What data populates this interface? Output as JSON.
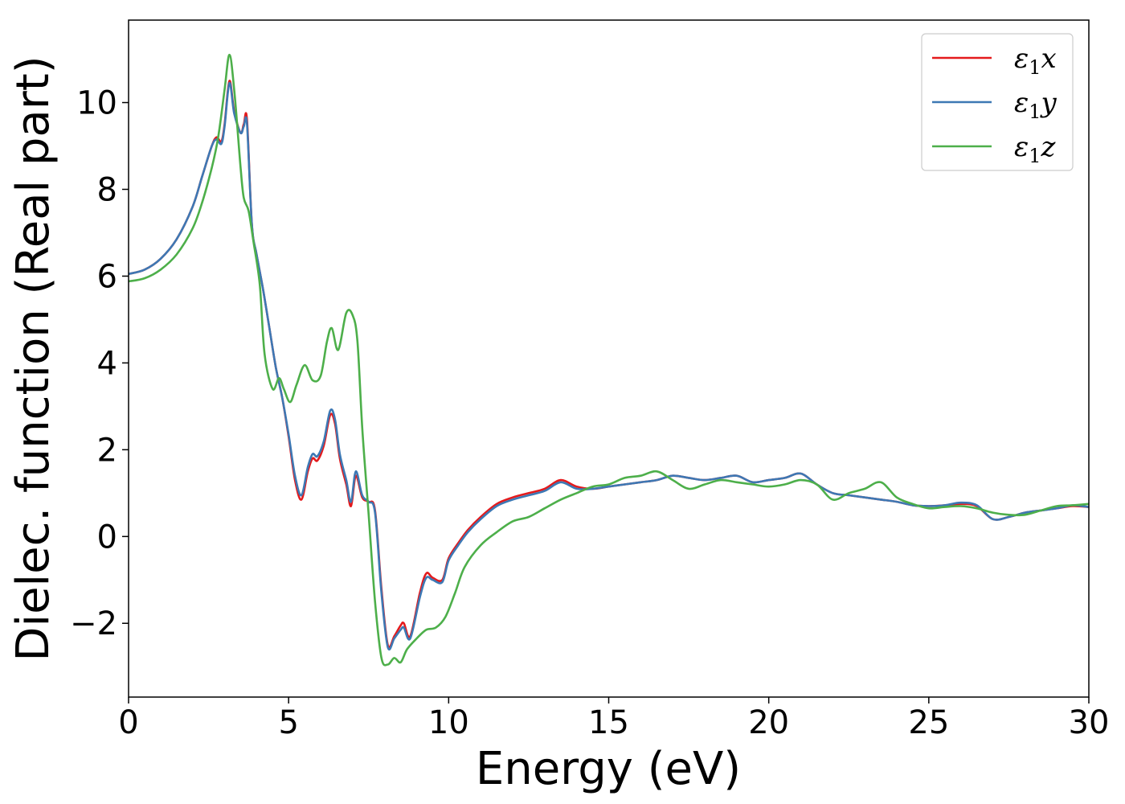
{
  "chart_data": {
    "type": "line",
    "xlabel": "Energy (eV)",
    "ylabel": "Dielec. function (Real part)",
    "xlim": [
      0,
      30
    ],
    "ylim": [
      -3.7,
      11.9
    ],
    "xticks": [
      0,
      5,
      10,
      15,
      20,
      25,
      30
    ],
    "yticks": [
      -2,
      0,
      2,
      4,
      6,
      8,
      10
    ],
    "ytick_labels": [
      "−2",
      "0",
      "2",
      "4",
      "6",
      "8",
      "10"
    ],
    "grid": false,
    "legend_position": "top-right",
    "series": [
      {
        "name": "ε",
        "name_sub": "1",
        "name_suffix": "x",
        "color": "#e41a1c",
        "x": [
          0,
          0.5,
          1.0,
          1.5,
          2.0,
          2.3,
          2.6,
          2.75,
          2.9,
          3.0,
          3.15,
          3.3,
          3.5,
          3.6,
          3.7,
          3.85,
          4.0,
          4.2,
          4.4,
          4.6,
          4.8,
          5.0,
          5.2,
          5.4,
          5.6,
          5.75,
          5.9,
          6.1,
          6.3,
          6.45,
          6.6,
          6.8,
          6.95,
          7.1,
          7.3,
          7.5,
          7.7,
          7.9,
          8.1,
          8.3,
          8.5,
          8.6,
          8.8,
          9.1,
          9.3,
          9.5,
          9.8,
          10.0,
          10.3,
          10.6,
          11.0,
          11.5,
          12.0,
          12.5,
          13.0,
          13.5,
          14.0,
          14.5,
          15.0,
          15.5,
          16.0,
          16.5,
          17.0,
          17.5,
          18.0,
          18.5,
          19.0,
          19.5,
          20.0,
          20.5,
          21.0,
          21.5,
          22.0,
          22.5,
          23.0,
          23.5,
          24.0,
          24.5,
          25.0,
          25.5,
          26.0,
          26.5,
          27.0,
          27.5,
          28.0,
          28.5,
          29.0,
          29.5,
          30.0
        ],
        "y": [
          6.05,
          6.15,
          6.4,
          6.85,
          7.6,
          8.3,
          9.0,
          9.2,
          9.1,
          9.5,
          10.5,
          9.8,
          9.3,
          9.5,
          9.6,
          7.2,
          6.5,
          5.7,
          4.8,
          3.9,
          3.2,
          2.3,
          1.3,
          0.85,
          1.5,
          1.8,
          1.75,
          2.1,
          2.8,
          2.6,
          1.8,
          1.2,
          0.7,
          1.4,
          0.9,
          0.8,
          0.6,
          -1.2,
          -2.5,
          -2.3,
          -2.05,
          -2.0,
          -2.3,
          -1.3,
          -0.85,
          -0.95,
          -1.0,
          -0.5,
          -0.15,
          0.15,
          0.45,
          0.75,
          0.9,
          1.0,
          1.1,
          1.3,
          1.15,
          1.1,
          1.15,
          1.2,
          1.25,
          1.3,
          1.4,
          1.35,
          1.3,
          1.35,
          1.4,
          1.25,
          1.3,
          1.35,
          1.45,
          1.2,
          1.0,
          0.95,
          0.9,
          0.85,
          0.8,
          0.72,
          0.7,
          0.72,
          0.75,
          0.7,
          0.4,
          0.45,
          0.55,
          0.6,
          0.65,
          0.7,
          0.68
        ]
      },
      {
        "name": "ε",
        "name_sub": "1",
        "name_suffix": "y",
        "color": "#3d78b4",
        "x": [
          0,
          0.5,
          1.0,
          1.5,
          2.0,
          2.3,
          2.6,
          2.75,
          2.9,
          3.0,
          3.15,
          3.3,
          3.5,
          3.6,
          3.7,
          3.85,
          4.0,
          4.2,
          4.4,
          4.6,
          4.8,
          5.0,
          5.2,
          5.4,
          5.6,
          5.75,
          5.9,
          6.1,
          6.3,
          6.45,
          6.6,
          6.8,
          6.95,
          7.1,
          7.3,
          7.5,
          7.7,
          7.9,
          8.1,
          8.3,
          8.5,
          8.6,
          8.8,
          9.1,
          9.3,
          9.5,
          9.8,
          10.0,
          10.3,
          10.6,
          11.0,
          11.5,
          12.0,
          12.5,
          13.0,
          13.5,
          14.0,
          14.5,
          15.0,
          15.5,
          16.0,
          16.5,
          17.0,
          17.5,
          18.0,
          18.5,
          19.0,
          19.5,
          20.0,
          20.5,
          21.0,
          21.5,
          22.0,
          22.5,
          23.0,
          23.5,
          24.0,
          24.5,
          25.0,
          25.5,
          26.0,
          26.5,
          27.0,
          27.5,
          28.0,
          28.5,
          29.0,
          29.5,
          30.0
        ],
        "y": [
          6.05,
          6.15,
          6.4,
          6.85,
          7.6,
          8.3,
          9.0,
          9.15,
          9.05,
          9.45,
          10.45,
          9.75,
          9.3,
          9.45,
          9.5,
          7.2,
          6.5,
          5.7,
          4.8,
          3.9,
          3.2,
          2.35,
          1.4,
          0.95,
          1.6,
          1.9,
          1.85,
          2.2,
          2.9,
          2.7,
          1.9,
          1.3,
          0.8,
          1.5,
          0.95,
          0.8,
          0.55,
          -1.3,
          -2.55,
          -2.35,
          -2.15,
          -2.1,
          -2.35,
          -1.4,
          -0.95,
          -1.0,
          -1.05,
          -0.55,
          -0.2,
          0.1,
          0.4,
          0.7,
          0.85,
          0.95,
          1.05,
          1.25,
          1.1,
          1.1,
          1.15,
          1.2,
          1.25,
          1.3,
          1.4,
          1.35,
          1.3,
          1.35,
          1.4,
          1.25,
          1.3,
          1.35,
          1.45,
          1.2,
          1.0,
          0.95,
          0.9,
          0.85,
          0.8,
          0.72,
          0.7,
          0.72,
          0.78,
          0.72,
          0.4,
          0.45,
          0.55,
          0.6,
          0.65,
          0.72,
          0.68
        ]
      },
      {
        "name": "ε",
        "name_sub": "1",
        "name_suffix": "z",
        "color": "#4daf4a",
        "x": [
          0,
          0.5,
          1.0,
          1.5,
          2.0,
          2.3,
          2.6,
          2.8,
          3.0,
          3.15,
          3.3,
          3.5,
          3.6,
          3.75,
          3.9,
          4.1,
          4.25,
          4.5,
          4.7,
          4.85,
          5.05,
          5.25,
          5.5,
          5.75,
          6.0,
          6.2,
          6.35,
          6.55,
          6.8,
          7.0,
          7.15,
          7.3,
          7.5,
          7.7,
          7.9,
          8.1,
          8.3,
          8.5,
          8.7,
          9.0,
          9.3,
          9.6,
          9.9,
          10.2,
          10.5,
          11.0,
          11.5,
          12.0,
          12.5,
          13.0,
          13.5,
          14.0,
          14.5,
          15.0,
          15.5,
          16.0,
          16.5,
          17.0,
          17.5,
          18.0,
          18.5,
          19.0,
          19.5,
          20.0,
          20.5,
          21.0,
          21.5,
          22.0,
          22.5,
          23.0,
          23.5,
          24.0,
          24.5,
          25.0,
          25.5,
          26.0,
          26.5,
          27.0,
          27.5,
          28.0,
          28.5,
          29.0,
          29.5,
          30.0
        ],
        "y": [
          5.88,
          5.95,
          6.15,
          6.5,
          7.1,
          7.7,
          8.5,
          9.2,
          10.3,
          11.1,
          10.3,
          8.5,
          7.8,
          7.5,
          6.8,
          5.8,
          4.2,
          3.4,
          3.65,
          3.4,
          3.1,
          3.5,
          3.95,
          3.6,
          3.7,
          4.5,
          4.8,
          4.3,
          5.15,
          5.1,
          4.5,
          2.5,
          0.5,
          -1.5,
          -2.8,
          -2.95,
          -2.8,
          -2.9,
          -2.6,
          -2.35,
          -2.15,
          -2.1,
          -1.85,
          -1.3,
          -0.7,
          -0.2,
          0.1,
          0.35,
          0.45,
          0.65,
          0.85,
          1.0,
          1.15,
          1.2,
          1.35,
          1.4,
          1.5,
          1.3,
          1.1,
          1.2,
          1.3,
          1.25,
          1.2,
          1.15,
          1.2,
          1.3,
          1.2,
          0.85,
          1.0,
          1.1,
          1.25,
          0.9,
          0.75,
          0.65,
          0.68,
          0.7,
          0.65,
          0.55,
          0.5,
          0.5,
          0.6,
          0.7,
          0.72,
          0.75
        ]
      }
    ]
  }
}
